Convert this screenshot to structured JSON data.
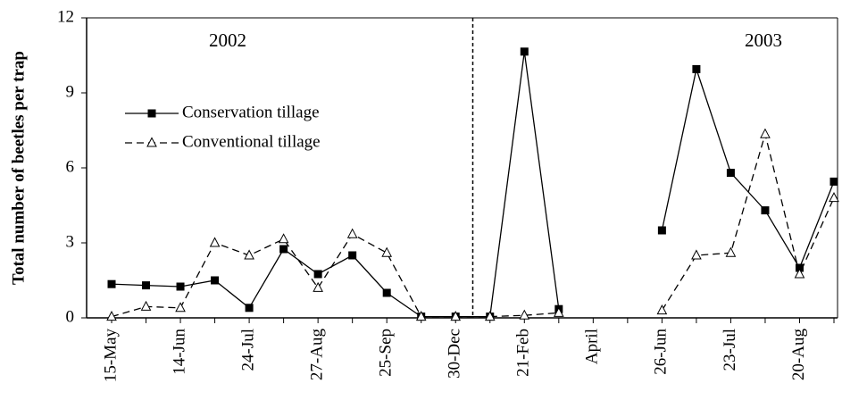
{
  "chart_data": {
    "type": "line",
    "y_label": "Total number of beetles per trap",
    "annotations": [
      "2002",
      "2003"
    ],
    "categories": [
      "15-May",
      null,
      "14-Jun",
      null,
      "24-Jul",
      null,
      "27-Aug",
      null,
      "25-Sep",
      null,
      "30-Dec",
      null,
      "21-Feb",
      null,
      "April",
      null,
      "26-Jun",
      null,
      "23-Jul",
      null,
      "20-Aug",
      null
    ],
    "series": [
      {
        "name": "Conservation tillage",
        "color": "#000000",
        "marker": "square",
        "dash": false,
        "values": [
          1.35,
          1.3,
          1.25,
          1.5,
          0.4,
          2.75,
          1.75,
          2.5,
          1.0,
          0.05,
          0.05,
          0.05,
          10.65,
          0.35,
          null,
          null,
          3.5,
          9.95,
          5.8,
          4.3,
          2.0,
          5.45
        ]
      },
      {
        "name": "Conventional tillage",
        "color": "#000000",
        "marker": "triangle",
        "dash": true,
        "values": [
          0.05,
          0.45,
          0.4,
          3.0,
          2.5,
          3.15,
          1.2,
          3.35,
          2.6,
          0.05,
          0.05,
          0.05,
          0.1,
          0.2,
          null,
          null,
          0.3,
          2.5,
          2.6,
          7.35,
          1.75,
          4.8
        ]
      }
    ],
    "ylim": [
      0,
      12
    ],
    "yticks": [
      0,
      3,
      6,
      9,
      12
    ],
    "legend": "upper left",
    "grid": false
  }
}
